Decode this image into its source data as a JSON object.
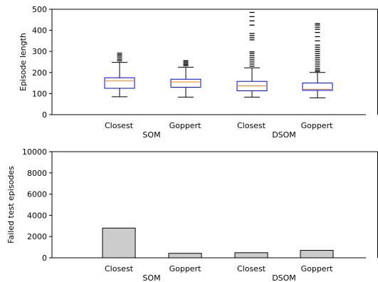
{
  "chart_data": [
    {
      "type": "box",
      "ylabel": "Episode length",
      "ylim": [
        0,
        500
      ],
      "yticks": [
        0,
        100,
        200,
        300,
        400,
        500
      ],
      "categories": [
        "Closest",
        "Goppert",
        "Closest",
        "Goppert"
      ],
      "groups": [
        "SOM",
        "DSOM"
      ],
      "box_color": "#0000ff",
      "median_color": "#ff7f0e",
      "boxes": [
        {
          "category": "Closest",
          "group": "SOM",
          "whisker_low": 85,
          "q1": 125,
          "median": 160,
          "q3": 175,
          "whisker_high": 248,
          "outliers": [
            255,
            262,
            270,
            278,
            285,
            292
          ]
        },
        {
          "category": "Goppert",
          "group": "SOM",
          "whisker_low": 83,
          "q1": 130,
          "median": 155,
          "q3": 168,
          "whisker_high": 225,
          "outliers": [
            232,
            238,
            244,
            250,
            256
          ]
        },
        {
          "category": "Closest",
          "group": "DSOM",
          "whisker_low": 83,
          "q1": 113,
          "median": 137,
          "q3": 158,
          "whisker_high": 222,
          "outliers": [
            230,
            240,
            250,
            260,
            270,
            280,
            290,
            298,
            355,
            365,
            375,
            385,
            425,
            445,
            465,
            485
          ]
        },
        {
          "category": "Goppert",
          "group": "DSOM",
          "whisker_low": 80,
          "q1": 115,
          "median": 120,
          "q3": 150,
          "whisker_high": 200,
          "outliers": [
            205,
            212,
            220,
            230,
            240,
            250,
            260,
            270,
            280,
            290,
            300,
            310,
            320,
            330,
            350,
            370,
            390,
            405,
            415,
            425,
            432
          ]
        }
      ]
    },
    {
      "type": "bar",
      "ylabel": "Failed test episodes",
      "ylim": [
        0,
        10000
      ],
      "yticks": [
        0,
        2000,
        4000,
        6000,
        8000,
        10000
      ],
      "categories": [
        "Closest",
        "Goppert",
        "Closest",
        "Goppert"
      ],
      "groups": [
        "SOM",
        "DSOM"
      ],
      "bar_color": "#cccccc",
      "values": [
        2800,
        420,
        480,
        700
      ]
    }
  ]
}
